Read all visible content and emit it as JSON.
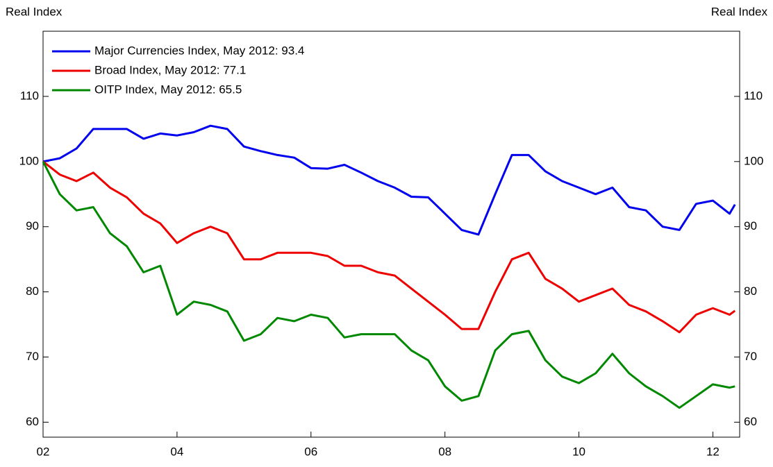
{
  "chart_data": {
    "type": "line",
    "ylabel": "Real Index",
    "y2label": "Real Index",
    "x": [
      2002.0,
      2002.25,
      2002.5,
      2002.75,
      2003.0,
      2003.25,
      2003.5,
      2003.75,
      2004.0,
      2004.25,
      2004.5,
      2004.75,
      2005.0,
      2005.25,
      2005.5,
      2005.75,
      2006.0,
      2006.25,
      2006.5,
      2006.75,
      2007.0,
      2007.25,
      2007.5,
      2007.75,
      2008.0,
      2008.25,
      2008.5,
      2008.75,
      2009.0,
      2009.25,
      2009.5,
      2009.75,
      2010.0,
      2010.25,
      2010.5,
      2010.75,
      2011.0,
      2011.25,
      2011.5,
      2011.75,
      2012.0,
      2012.25,
      2012.33
    ],
    "series": [
      {
        "name": "Major Currencies Index, May 2012: 93.4",
        "color": "#0000ee",
        "values": [
          100,
          100.5,
          102,
          105,
          105,
          105,
          103.5,
          104.3,
          104,
          104.5,
          105.5,
          105,
          102.3,
          101.6,
          101,
          100.6,
          99,
          98.9,
          99.5,
          98.3,
          97,
          96,
          94.6,
          94.5,
          92,
          89.5,
          88.8,
          95,
          101,
          101,
          98.5,
          97,
          96,
          95,
          96,
          93,
          92.5,
          90,
          89.5,
          93.5,
          94,
          92,
          93.4
        ]
      },
      {
        "name": "Broad Index, May 2012: 77.1",
        "color": "#ee0000",
        "values": [
          100,
          98,
          97,
          98.3,
          96,
          94.5,
          92,
          90.5,
          87.5,
          89,
          90,
          89,
          85,
          85,
          86,
          86,
          86,
          85.5,
          84,
          84,
          83,
          82.5,
          80.5,
          78.5,
          76.5,
          74.3,
          74.3,
          80,
          85,
          86,
          82,
          80.5,
          78.5,
          79.5,
          80.5,
          78,
          77,
          75.5,
          73.8,
          76.5,
          77.5,
          76.5,
          77.1
        ]
      },
      {
        "name": "OITP Index, May 2012: 65.5",
        "color": "#008800",
        "values": [
          100,
          95,
          92.5,
          93,
          89,
          87,
          83,
          84,
          76.5,
          78.5,
          78,
          77,
          72.5,
          73.5,
          76,
          75.5,
          76.5,
          76,
          73,
          73.5,
          73.5,
          73.5,
          71,
          69.5,
          65.5,
          63.3,
          64,
          71,
          73.5,
          74,
          69.5,
          67,
          66,
          67.5,
          70.5,
          67.5,
          65.5,
          64,
          62.2,
          64,
          65.8,
          65.3,
          65.5
        ]
      }
    ],
    "xlim": [
      2002,
      2012.4
    ],
    "xticks": [
      {
        "value": 2002,
        "label": "02"
      },
      {
        "value": 2004,
        "label": "04"
      },
      {
        "value": 2006,
        "label": "06"
      },
      {
        "value": 2008,
        "label": "08"
      },
      {
        "value": 2010,
        "label": "10"
      },
      {
        "value": 2012,
        "label": "12"
      }
    ],
    "ylim": [
      57.7,
      120
    ],
    "yticks": [
      60,
      70,
      80,
      90,
      100,
      110
    ],
    "y2lim": [
      57.7,
      120
    ],
    "y2ticks": [
      60,
      70,
      80,
      90,
      100,
      110
    ],
    "legend": "upper left"
  }
}
